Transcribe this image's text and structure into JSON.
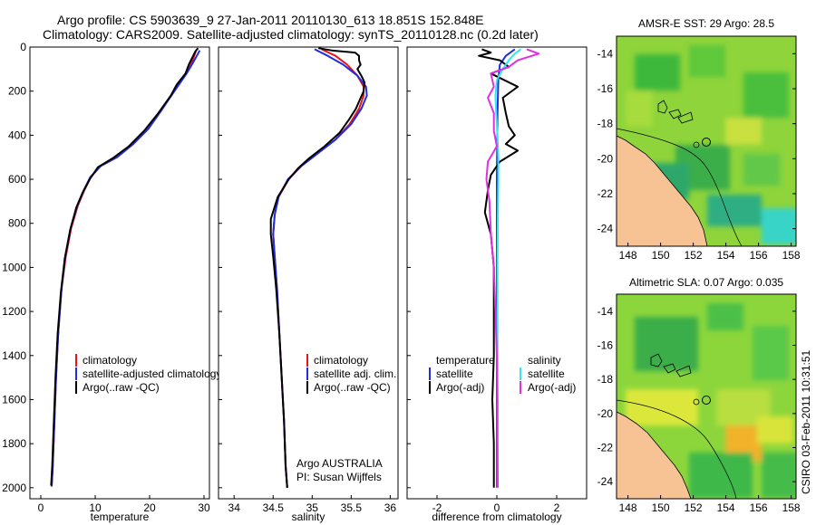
{
  "header": {
    "title_line1": "Argo profile: CS 5903639_9 27-Jan-2011 20110130_613 18.851S 152.848E",
    "title_line2": "Climatology: CARS2009. Satellite-adjusted climatology: synTS_20110128.nc (0.2d later)"
  },
  "footer": {
    "stamp": "CSIRO 03-Feb-2011 10:31:51"
  },
  "colors": {
    "climatology": "#e8141c",
    "satellite": "#1f2ee0",
    "argo": "#000000",
    "salinity_satellite": "#33e6f0",
    "salinity_argo": "#e030e0",
    "land": "#f7c394"
  },
  "chart_data": [
    {
      "id": "temperature",
      "type": "line",
      "xlabel": "temperature",
      "ylabel": "",
      "xlim": [
        -2,
        31
      ],
      "ylim": [
        2050,
        0
      ],
      "xticks": [
        0,
        10,
        20,
        30
      ],
      "yticks": [
        0,
        200,
        400,
        600,
        800,
        1000,
        1200,
        1400,
        1600,
        1800,
        2000
      ],
      "legend": [
        "climatology",
        "satellite-adjusted climatology",
        "Argo(..raw -QC)"
      ],
      "series": [
        {
          "name": "climatology",
          "color": "#e8141c",
          "points": [
            [
              28.5,
              20
            ],
            [
              28.2,
              40
            ],
            [
              27.6,
              80
            ],
            [
              26.6,
              120
            ],
            [
              25.3,
              170
            ],
            [
              24.0,
              220
            ],
            [
              22.0,
              290
            ],
            [
              19.8,
              370
            ],
            [
              17.0,
              440
            ],
            [
              14.0,
              500
            ],
            [
              11.0,
              540
            ],
            [
              9.2,
              590
            ],
            [
              8.0,
              650
            ],
            [
              6.8,
              720
            ],
            [
              5.6,
              820
            ],
            [
              4.6,
              950
            ],
            [
              3.8,
              1100
            ],
            [
              3.2,
              1300
            ],
            [
              2.8,
              1500
            ],
            [
              2.5,
              1700
            ],
            [
              2.2,
              1900
            ],
            [
              2.0,
              1990
            ]
          ]
        },
        {
          "name": "satellite-adjusted climatology",
          "color": "#1f2ee0",
          "points": [
            [
              29.2,
              15
            ],
            [
              28.9,
              30
            ],
            [
              28.0,
              70
            ],
            [
              26.8,
              120
            ],
            [
              25.4,
              170
            ],
            [
              24.0,
              220
            ],
            [
              22.1,
              290
            ],
            [
              19.8,
              370
            ],
            [
              17.0,
              440
            ],
            [
              14.0,
              500
            ],
            [
              11.0,
              540
            ],
            [
              9.1,
              590
            ],
            [
              7.9,
              650
            ],
            [
              6.7,
              720
            ],
            [
              5.5,
              820
            ],
            [
              4.5,
              950
            ],
            [
              3.8,
              1100
            ],
            [
              3.2,
              1300
            ],
            [
              2.8,
              1500
            ],
            [
              2.5,
              1700
            ],
            [
              2.2,
              1900
            ],
            [
              2.0,
              1995
            ]
          ]
        },
        {
          "name": "Argo(..raw -QC)",
          "color": "#000000",
          "points": [
            [
              28.9,
              5
            ],
            [
              28.4,
              20
            ],
            [
              27.9,
              45
            ],
            [
              27.2,
              80
            ],
            [
              26.6,
              120
            ],
            [
              25.0,
              170
            ],
            [
              23.9,
              220
            ],
            [
              21.6,
              300
            ],
            [
              19.0,
              380
            ],
            [
              16.2,
              450
            ],
            [
              13.2,
              505
            ],
            [
              10.5,
              545
            ],
            [
              9.0,
              600
            ],
            [
              7.7,
              660
            ],
            [
              6.5,
              730
            ],
            [
              5.4,
              830
            ],
            [
              4.4,
              960
            ],
            [
              3.7,
              1110
            ],
            [
              3.1,
              1300
            ],
            [
              2.7,
              1500
            ],
            [
              2.4,
              1700
            ],
            [
              2.1,
              1900
            ],
            [
              1.9,
              1990
            ]
          ]
        }
      ]
    },
    {
      "id": "salinity",
      "type": "line",
      "xlabel": "salinity",
      "ylabel": "",
      "xlim": [
        33.8,
        36.1
      ],
      "ylim": [
        2050,
        0
      ],
      "xticks": [
        34,
        34.5,
        35,
        35.5,
        36
      ],
      "yticks": [
        0,
        200,
        400,
        600,
        800,
        1000,
        1200,
        1400,
        1600,
        1800,
        2000
      ],
      "legend": [
        "climatology",
        "satellite adj. clim.",
        "Argo(..raw -QC)"
      ],
      "annotations": [
        "Argo AUSTRALIA",
        "PI: Susan Wijffels"
      ],
      "series": [
        {
          "name": "climatology",
          "color": "#e8141c",
          "points": [
            [
              35.12,
              10
            ],
            [
              35.3,
              40
            ],
            [
              35.45,
              80
            ],
            [
              35.58,
              130
            ],
            [
              35.66,
              180
            ],
            [
              35.66,
              220
            ],
            [
              35.6,
              280
            ],
            [
              35.48,
              350
            ],
            [
              35.3,
              420
            ],
            [
              35.08,
              480
            ],
            [
              34.86,
              540
            ],
            [
              34.7,
              600
            ],
            [
              34.57,
              680
            ],
            [
              34.52,
              760
            ],
            [
              34.5,
              850
            ],
            [
              34.52,
              950
            ],
            [
              34.55,
              1100
            ],
            [
              34.58,
              1300
            ],
            [
              34.61,
              1500
            ],
            [
              34.64,
              1700
            ],
            [
              34.66,
              1900
            ],
            [
              34.68,
              2000
            ]
          ]
        },
        {
          "name": "satellite adj. clim.",
          "color": "#1f2ee0",
          "points": [
            [
              35.03,
              10
            ],
            [
              35.2,
              40
            ],
            [
              35.4,
              80
            ],
            [
              35.58,
              130
            ],
            [
              35.69,
              180
            ],
            [
              35.7,
              220
            ],
            [
              35.63,
              280
            ],
            [
              35.5,
              350
            ],
            [
              35.3,
              420
            ],
            [
              35.08,
              480
            ],
            [
              34.86,
              540
            ],
            [
              34.69,
              600
            ],
            [
              34.57,
              680
            ],
            [
              34.52,
              760
            ],
            [
              34.5,
              850
            ],
            [
              34.52,
              950
            ],
            [
              34.55,
              1100
            ],
            [
              34.58,
              1300
            ],
            [
              34.61,
              1500
            ],
            [
              34.64,
              1700
            ],
            [
              34.66,
              1900
            ],
            [
              34.68,
              2000
            ]
          ]
        },
        {
          "name": "Argo(..raw -QC)",
          "color": "#000000",
          "points": [
            [
              35.08,
              5
            ],
            [
              35.25,
              15
            ],
            [
              35.55,
              25
            ],
            [
              35.6,
              40
            ],
            [
              35.6,
              60
            ],
            [
              35.62,
              80
            ],
            [
              35.58,
              100
            ],
            [
              35.63,
              130
            ],
            [
              35.67,
              160
            ],
            [
              35.66,
              200
            ],
            [
              35.61,
              240
            ],
            [
              35.56,
              280
            ],
            [
              35.47,
              330
            ],
            [
              35.35,
              390
            ],
            [
              35.16,
              450
            ],
            [
              34.96,
              505
            ],
            [
              34.82,
              550
            ],
            [
              34.7,
              600
            ],
            [
              34.56,
              680
            ],
            [
              34.47,
              780
            ],
            [
              34.47,
              850
            ],
            [
              34.5,
              950
            ],
            [
              34.54,
              1100
            ],
            [
              34.58,
              1300
            ],
            [
              34.61,
              1500
            ],
            [
              34.64,
              1700
            ],
            [
              34.66,
              1900
            ],
            [
              34.68,
              2000
            ]
          ]
        }
      ]
    },
    {
      "id": "difference",
      "type": "line",
      "xlabel": "difference from climatology",
      "ylabel": "",
      "xlim": [
        -3,
        3
      ],
      "ylim": [
        2050,
        0
      ],
      "xticks": [
        -2,
        0,
        2
      ],
      "yticks": [
        0,
        200,
        400,
        600,
        800,
        1000,
        1200,
        1400,
        1600,
        1800,
        2000
      ],
      "legend_left_title": "temperature",
      "legend_left": [
        "satellite",
        "Argo(-adj)"
      ],
      "legend_right_title": "salinity",
      "legend_right": [
        "satellite",
        "Argo(-adj)"
      ],
      "series": [
        {
          "name": "temperature satellite",
          "color": "#1f2ee0",
          "points": [
            [
              0.6,
              10
            ],
            [
              0.3,
              40
            ],
            [
              0.1,
              80
            ],
            [
              0.05,
              150
            ],
            [
              0.02,
              300
            ],
            [
              0.0,
              600
            ],
            [
              0.0,
              1000
            ],
            [
              0.0,
              1500
            ],
            [
              0.0,
              2000
            ]
          ]
        },
        {
          "name": "temperature Argo(-adj)",
          "color": "#000000",
          "points": [
            [
              -0.5,
              10
            ],
            [
              -0.2,
              25
            ],
            [
              -0.6,
              40
            ],
            [
              0.1,
              60
            ],
            [
              0.4,
              90
            ],
            [
              -0.2,
              120
            ],
            [
              0.7,
              180
            ],
            [
              0.2,
              230
            ],
            [
              0.3,
              300
            ],
            [
              0.4,
              360
            ],
            [
              0.6,
              400
            ],
            [
              0.3,
              440
            ],
            [
              0.7,
              470
            ],
            [
              0.1,
              520
            ],
            [
              -0.2,
              580
            ],
            [
              -0.3,
              650
            ],
            [
              -0.4,
              750
            ],
            [
              -0.2,
              850
            ],
            [
              -0.1,
              1000
            ],
            [
              -0.1,
              1200
            ],
            [
              -0.1,
              1400
            ],
            [
              -0.15,
              1600
            ],
            [
              -0.1,
              1800
            ],
            [
              -0.1,
              2000
            ]
          ]
        },
        {
          "name": "salinity satellite",
          "color": "#33e6f0",
          "points": [
            [
              0.8,
              10
            ],
            [
              0.6,
              30
            ],
            [
              0.4,
              60
            ],
            [
              0.2,
              100
            ],
            [
              0.0,
              150
            ],
            [
              -0.05,
              220
            ],
            [
              -0.02,
              300
            ],
            [
              0.02,
              400
            ],
            [
              0.05,
              500
            ],
            [
              0.05,
              600
            ],
            [
              0.03,
              800
            ],
            [
              0.02,
              1000
            ],
            [
              0.02,
              1400
            ],
            [
              0.02,
              1800
            ],
            [
              0.02,
              2000
            ]
          ]
        },
        {
          "name": "salinity Argo(-adj)",
          "color": "#e030e0",
          "points": [
            [
              1.0,
              10
            ],
            [
              1.4,
              30
            ],
            [
              0.7,
              60
            ],
            [
              0.4,
              90
            ],
            [
              -0.2,
              120
            ],
            [
              -0.1,
              180
            ],
            [
              -0.3,
              230
            ],
            [
              -0.1,
              300
            ],
            [
              -0.1,
              380
            ],
            [
              0.0,
              450
            ],
            [
              -0.3,
              520
            ],
            [
              -0.35,
              600
            ],
            [
              -0.25,
              700
            ],
            [
              -0.2,
              850
            ],
            [
              -0.1,
              1000
            ],
            [
              -0.05,
              1200
            ],
            [
              0.0,
              1400
            ],
            [
              0.02,
              1600
            ],
            [
              0.02,
              1800
            ],
            [
              0.03,
              2000
            ]
          ]
        }
      ]
    },
    {
      "id": "sst_map",
      "type": "heatmap",
      "title": "AMSR-E SST: 29 Argo: 28.5",
      "xlim": [
        147.3,
        158.3
      ],
      "ylim": [
        -25,
        -13
      ],
      "xticks": [
        148,
        150,
        152,
        154,
        156,
        158
      ],
      "yticks": [
        -14,
        -16,
        -18,
        -20,
        -22,
        -24
      ]
    },
    {
      "id": "sla_map",
      "type": "heatmap",
      "title": "Altimetric SLA: 0.07 Argo: 0.035",
      "xlim": [
        147.3,
        158.3
      ],
      "ylim": [
        -25,
        -13
      ],
      "xticks": [
        148,
        150,
        152,
        154,
        156,
        158
      ],
      "yticks": [
        -14,
        -16,
        -18,
        -20,
        -22,
        -24
      ]
    }
  ]
}
